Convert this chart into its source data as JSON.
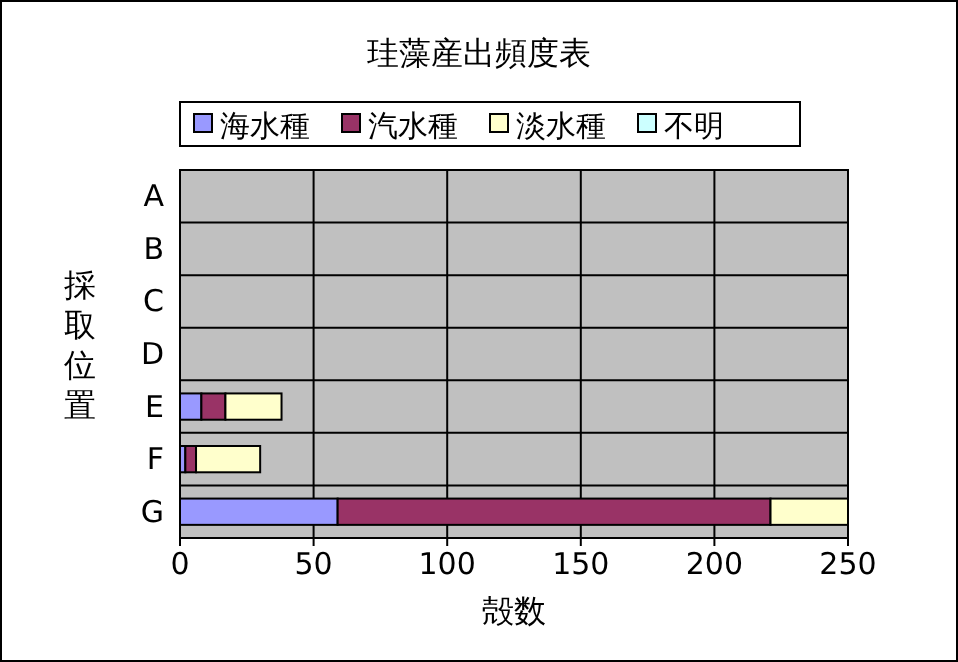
{
  "chart_data": {
    "type": "bar",
    "orientation": "horizontal",
    "stacked": true,
    "title": "珪藻産出頻度表",
    "xlabel": "殻数",
    "ylabel": "採取位置",
    "categories": [
      "A",
      "B",
      "C",
      "D",
      "E",
      "F",
      "G"
    ],
    "series": [
      {
        "name": "海水種",
        "color": "#9999ff",
        "values": [
          0,
          0,
          0,
          0,
          8,
          2,
          59
        ]
      },
      {
        "name": "汽水種",
        "color": "#993366",
        "values": [
          0,
          0,
          0,
          0,
          9,
          4,
          162
        ]
      },
      {
        "name": "淡水種",
        "color": "#ffffcc",
        "values": [
          0,
          0,
          0,
          0,
          21,
          24,
          29
        ]
      },
      {
        "name": "不明",
        "color": "#ccffff",
        "values": [
          0,
          0,
          0,
          0,
          0,
          0,
          0
        ]
      }
    ],
    "xlim": [
      0,
      250
    ],
    "xticks": [
      0,
      50,
      100,
      150,
      200,
      250
    ],
    "grid": "x",
    "legend": "top"
  }
}
